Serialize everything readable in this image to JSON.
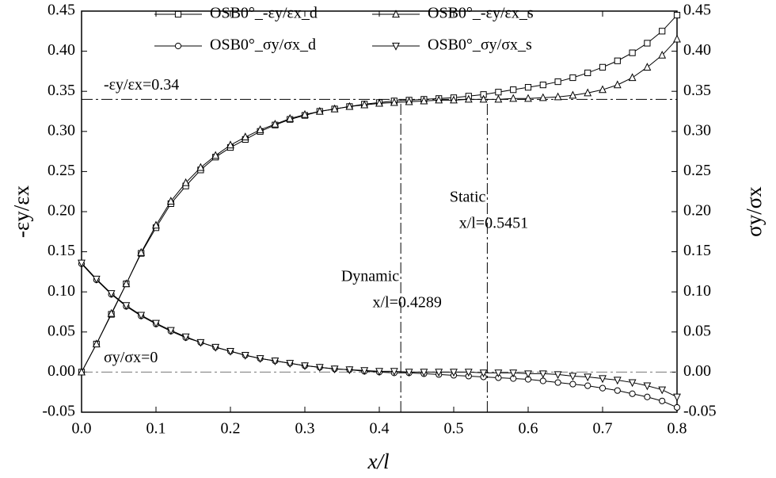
{
  "chart_data": {
    "type": "line",
    "xlabel": "x/l",
    "ylabel": "-εy/εx",
    "y2label": "σy/σx",
    "xlim": [
      0,
      0.8
    ],
    "xticks": [
      {
        "value": 0,
        "label": "0.0"
      },
      0.1,
      0.2,
      0.3,
      0.4,
      0.5,
      0.6,
      0.7,
      0.8
    ],
    "ylim": [
      -0.05,
      0.45
    ],
    "yticks": [
      -0.05,
      {
        "value": 0,
        "label": "0.00"
      },
      0.05,
      {
        "value": 0.1,
        "label": "0.10"
      },
      0.15,
      {
        "value": 0.2,
        "label": "0.20"
      },
      0.25,
      {
        "value": 0.3,
        "label": "0.30"
      },
      0.35,
      {
        "value": 0.4,
        "label": "0.40"
      },
      0.45
    ],
    "y2lim": [
      -0.05,
      0.45
    ],
    "y2ticks": [
      -0.05,
      {
        "value": 0,
        "label": "0.00"
      },
      0.05,
      {
        "value": 0.1,
        "label": "0.10"
      },
      0.15,
      {
        "value": 0.2,
        "label": "0.20"
      },
      0.25,
      {
        "value": 0.3,
        "label": "0.30"
      },
      0.35,
      {
        "value": 0.4,
        "label": "0.40"
      },
      0.45
    ],
    "legend": "top",
    "x": [
      0,
      0.02,
      0.04,
      0.06,
      0.08,
      0.1,
      0.12,
      0.14,
      0.16,
      0.18,
      0.2,
      0.22,
      0.24,
      0.26,
      0.28,
      0.3,
      0.32,
      0.34,
      0.36,
      0.38,
      0.4,
      0.42,
      0.44,
      0.46,
      0.48,
      0.5,
      0.52,
      0.54,
      0.56,
      0.58,
      0.6,
      0.62,
      0.64,
      0.66,
      0.68,
      0.7,
      0.72,
      0.74,
      0.76,
      0.78,
      0.8
    ],
    "series": [
      {
        "name": "OSB0°_-εy/εx_d",
        "color": "#000000",
        "marker": "square",
        "values": [
          0,
          0.035,
          0.072,
          0.11,
          0.148,
          0.18,
          0.21,
          0.232,
          0.252,
          0.268,
          0.28,
          0.29,
          0.3,
          0.308,
          0.315,
          0.32,
          0.325,
          0.328,
          0.331,
          0.334,
          0.336,
          0.338,
          0.339,
          0.34,
          0.341,
          0.342,
          0.344,
          0.346,
          0.349,
          0.352,
          0.355,
          0.358,
          0.362,
          0.367,
          0.373,
          0.38,
          0.388,
          0.398,
          0.41,
          0.425,
          0.445
        ]
      },
      {
        "name": "OSB0°_-εy/εx_s",
        "color": "#000000",
        "marker": "triangle",
        "values": [
          0,
          0.035,
          0.073,
          0.11,
          0.149,
          0.183,
          0.213,
          0.236,
          0.255,
          0.27,
          0.283,
          0.293,
          0.302,
          0.309,
          0.316,
          0.321,
          0.325,
          0.328,
          0.331,
          0.333,
          0.335,
          0.336,
          0.337,
          0.338,
          0.339,
          0.339,
          0.34,
          0.34,
          0.34,
          0.341,
          0.341,
          0.342,
          0.343,
          0.345,
          0.348,
          0.352,
          0.358,
          0.367,
          0.38,
          0.395,
          0.415
        ]
      },
      {
        "name": "OSB0°_σy/σx_d",
        "color": "#000000",
        "marker": "circle",
        "axis": "y2",
        "values": [
          0.135,
          0.115,
          0.097,
          0.082,
          0.07,
          0.06,
          0.051,
          0.043,
          0.037,
          0.031,
          0.026,
          0.021,
          0.017,
          0.014,
          0.011,
          0.008,
          0.006,
          0.004,
          0.003,
          0.001,
          0,
          -0.001,
          -0.001,
          -0.002,
          -0.003,
          -0.004,
          -0.005,
          -0.006,
          -0.007,
          -0.008,
          -0.009,
          -0.011,
          -0.013,
          -0.015,
          -0.017,
          -0.02,
          -0.023,
          -0.027,
          -0.031,
          -0.036,
          -0.044
        ]
      },
      {
        "name": "OSB0°_σy/σx_s",
        "color": "#000000",
        "marker": "triangle-down",
        "axis": "y2",
        "values": [
          0.136,
          0.116,
          0.098,
          0.083,
          0.071,
          0.061,
          0.052,
          0.044,
          0.037,
          0.031,
          0.026,
          0.021,
          0.017,
          0.014,
          0.011,
          0.008,
          0.006,
          0.004,
          0.003,
          0.002,
          0.001,
          0.001,
          0,
          0,
          0,
          0,
          0,
          -0.001,
          -0.001,
          -0.001,
          -0.002,
          -0.002,
          -0.003,
          -0.005,
          -0.006,
          -0.008,
          -0.01,
          -0.013,
          -0.017,
          -0.022,
          -0.031
        ]
      }
    ],
    "reference_lines": [
      {
        "axis": "y",
        "value": 0.34,
        "label": "-εy/εx=0.34"
      },
      {
        "axis": "y",
        "value": 0,
        "label": "σy/σx=0"
      },
      {
        "axis": "x",
        "value": 0.4289,
        "title": "Dynamic",
        "label": "x/l=0.4289"
      },
      {
        "axis": "x",
        "value": 0.5451,
        "title": "Static",
        "label": "x/l=0.5451"
      }
    ]
  }
}
